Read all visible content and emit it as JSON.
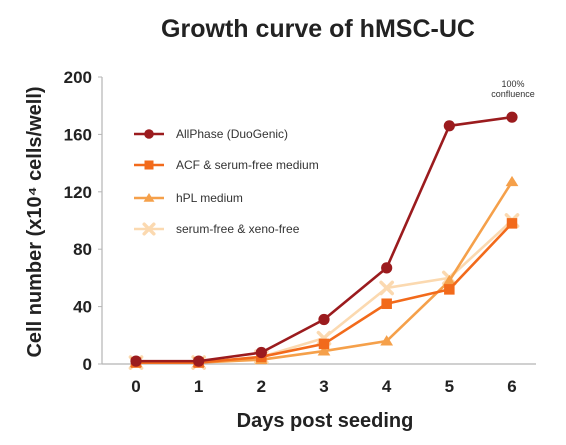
{
  "chart_data": {
    "type": "line",
    "title": "Growth curve of hMSC-UC",
    "xlabel": "Days post seeding",
    "ylabel": "Cell number (x10⁴ cells/well)",
    "x": [
      0,
      1,
      2,
      3,
      4,
      5,
      6
    ],
    "xlim": [
      0,
      6
    ],
    "ylim": [
      0,
      200
    ],
    "yticks": [
      0,
      40,
      80,
      120,
      160,
      200
    ],
    "grid": false,
    "legend_position": "top-left",
    "series": [
      {
        "name": "AllPhase (DuoGenic)",
        "marker": "circle",
        "color": "#9b1b1e",
        "values": [
          2,
          2,
          8,
          31,
          67,
          166,
          172
        ]
      },
      {
        "name": "ACF & serum-free medium",
        "marker": "square",
        "color": "#f26a1b",
        "values": [
          1,
          1,
          5,
          14,
          42,
          52,
          98
        ]
      },
      {
        "name": "hPL medium",
        "marker": "triangle",
        "color": "#f5a04a",
        "values": [
          1,
          1,
          3,
          9,
          16,
          58,
          127
        ]
      },
      {
        "name": "serum-free & xeno-free",
        "marker": "cross",
        "color": "#fbd9b0",
        "values": [
          1,
          1,
          5,
          18,
          53,
          60,
          100
        ]
      }
    ],
    "annotations": [
      {
        "text_lines": [
          "100%",
          "confluence"
        ],
        "x": 6,
        "y": 172
      }
    ]
  }
}
